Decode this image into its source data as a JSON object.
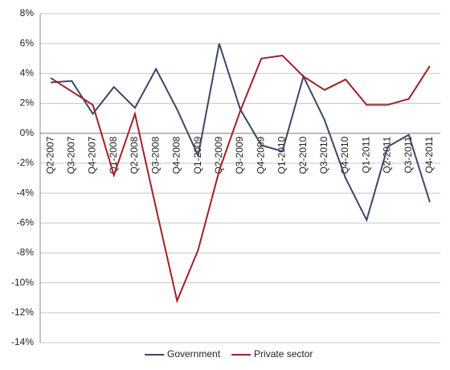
{
  "chart_data": {
    "type": "line",
    "categories": [
      "Q2-2007",
      "Q3-2007",
      "Q4-2007",
      "Q1-2008",
      "Q2-2008",
      "Q3-2008",
      "Q4-2008",
      "Q1-2009",
      "Q2-2009",
      "Q3-2009",
      "Q4-2009",
      "Q1-2010",
      "Q2-2010",
      "Q3-2010",
      "Q4-2010",
      "Q1-2011",
      "Q2-2011",
      "Q3-2011",
      "Q4-2011"
    ],
    "series": [
      {
        "name": "Government",
        "color": "#3b4766",
        "values": [
          3.4,
          3.5,
          1.3,
          3.1,
          1.7,
          4.3,
          1.6,
          -1.5,
          6.0,
          1.6,
          -0.8,
          -1.2,
          3.8,
          0.9,
          -3.0,
          -5.8,
          -0.9,
          -0.1,
          -4.6
        ]
      },
      {
        "name": "Private sector",
        "color": "#a0202a",
        "values": [
          3.7,
          2.8,
          1.9,
          -2.8,
          1.3,
          -5.0,
          -11.2,
          -7.8,
          -2.5,
          1.5,
          5.0,
          5.2,
          3.8,
          2.9,
          3.6,
          1.9,
          1.9,
          2.3,
          4.5
        ]
      }
    ],
    "ylim": [
      -14,
      8
    ],
    "yticks": [
      {
        "value": -14,
        "label": "-14%"
      },
      {
        "value": -12,
        "label": "-12%"
      },
      {
        "value": -10,
        "label": "-10%"
      },
      {
        "value": -8,
        "label": "-8%"
      },
      {
        "value": -6,
        "label": "-6%"
      },
      {
        "value": -4,
        "label": "-4%"
      },
      {
        "value": -2,
        "label": "-2%"
      },
      {
        "value": 0,
        "label": "0%"
      },
      {
        "value": 2,
        "label": "2%"
      },
      {
        "value": 4,
        "label": "4%"
      },
      {
        "value": 6,
        "label": "6%"
      },
      {
        "value": 8,
        "label": "8%"
      }
    ],
    "grid": true,
    "legend": "bottom"
  }
}
